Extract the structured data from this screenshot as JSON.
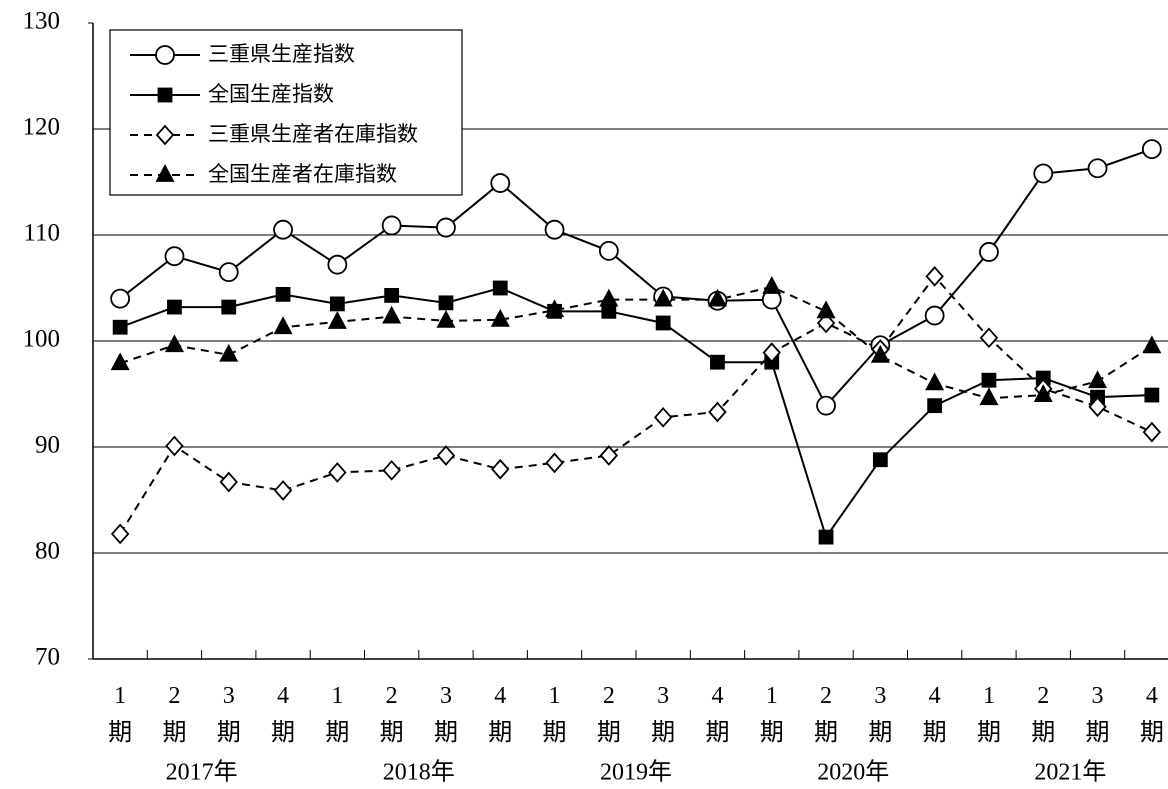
{
  "chart_data": {
    "type": "line",
    "categories": [
      "1期",
      "2期",
      "3期",
      "4期",
      "1期",
      "2期",
      "3期",
      "4期",
      "1期",
      "2期",
      "3期",
      "4期",
      "1期",
      "2期",
      "3期",
      "4期",
      "1期",
      "2期",
      "3期",
      "4期"
    ],
    "category_groups": [
      "2017年",
      "2018年",
      "2019年",
      "2020年",
      "2021年"
    ],
    "ylim": [
      70,
      130
    ],
    "yticks": [
      70,
      80,
      90,
      100,
      110,
      120,
      130
    ],
    "grid": true,
    "legend": "upper left",
    "series": [
      {
        "name": "三重県生産指数",
        "color": "#000000",
        "line_style": "solid",
        "marker": "circle",
        "marker_fill": "#ffffff",
        "values": [
          104.0,
          108.0,
          106.5,
          110.5,
          107.2,
          110.9,
          110.7,
          114.9,
          110.5,
          108.5,
          104.2,
          103.8,
          103.9,
          93.9,
          99.6,
          102.4,
          108.4,
          115.8,
          116.3,
          118.1
        ]
      },
      {
        "name": "全国生産指数",
        "color": "#000000",
        "line_style": "solid",
        "marker": "square",
        "marker_fill": "#000000",
        "values": [
          101.3,
          103.2,
          103.2,
          104.4,
          103.5,
          104.3,
          103.6,
          105.0,
          102.8,
          102.8,
          101.7,
          98.0,
          98.0,
          81.5,
          88.8,
          93.9,
          96.3,
          96.5,
          94.7,
          94.9
        ]
      },
      {
        "name": "三重県生産者在庫指数",
        "color": "#000000",
        "line_style": "dashed",
        "marker": "diamond",
        "marker_fill": "#ffffff",
        "values": [
          81.8,
          90.1,
          86.7,
          85.9,
          87.6,
          87.8,
          89.2,
          87.9,
          88.5,
          89.2,
          92.8,
          93.3,
          98.9,
          101.7,
          99.2,
          106.1,
          100.3,
          95.5,
          93.8,
          91.4
        ]
      },
      {
        "name": "全国生産者在庫指数",
        "color": "#000000",
        "line_style": "dashed",
        "marker": "triangle",
        "marker_fill": "#000000",
        "values": [
          97.9,
          99.6,
          98.7,
          101.3,
          101.8,
          102.3,
          101.9,
          102.0,
          102.9,
          103.9,
          103.9,
          103.9,
          105.1,
          102.8,
          98.6,
          96.0,
          94.6,
          94.9,
          96.2,
          99.5
        ]
      }
    ]
  }
}
